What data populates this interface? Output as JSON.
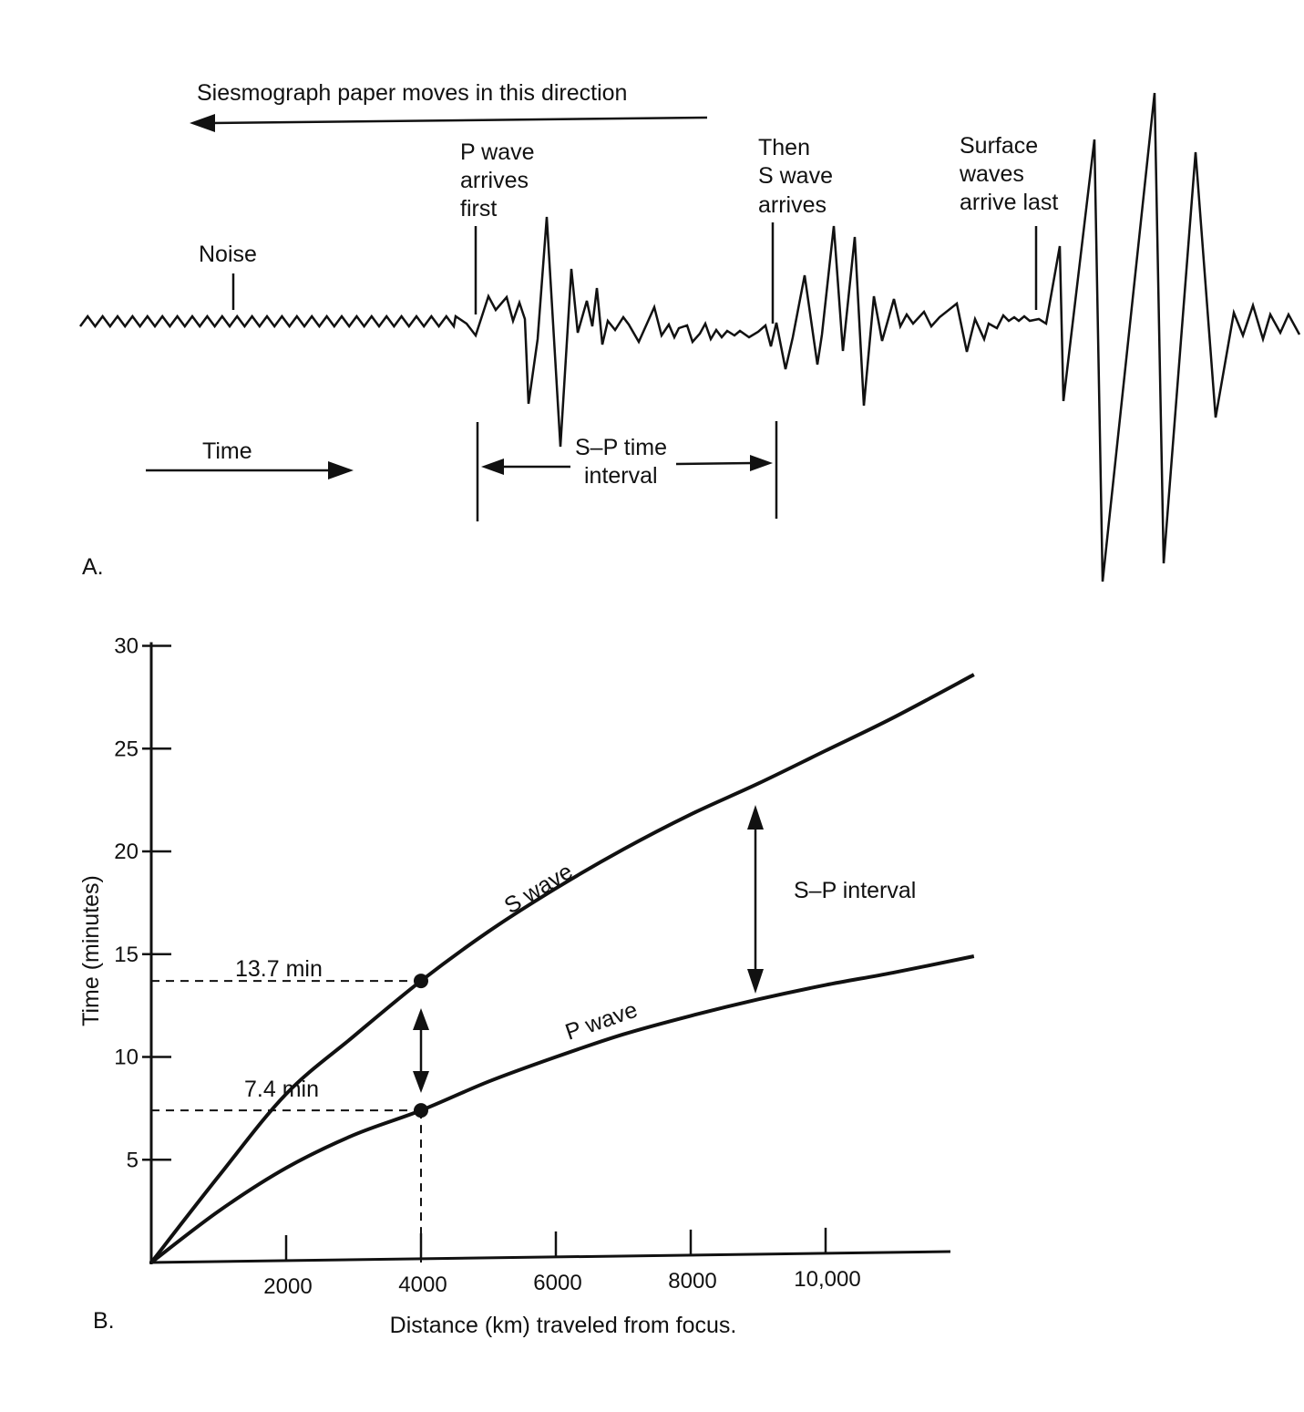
{
  "panel_a": {
    "panel_label": "A.",
    "paper_direction_label": "Siesmograph paper moves in this direction",
    "noise_label": "Noise",
    "p_wave_label": [
      "P wave",
      "arrives",
      "first"
    ],
    "s_wave_label": [
      "Then",
      "S wave",
      "arrives"
    ],
    "surface_label": [
      "Surface",
      "waves",
      "arrive last"
    ],
    "time_label": "Time",
    "sp_interval_label": [
      "S–P time",
      "interval"
    ]
  },
  "panel_b": {
    "panel_label": "B.",
    "s_marker_label": "13.7 min",
    "p_marker_label": "7.4 min",
    "interval_label": "S–P interval"
  },
  "chart_data": {
    "type": "line",
    "xlabel": "Distance (km) traveled from focus.",
    "ylabel": "Time (minutes)",
    "xlim": [
      0,
      11800
    ],
    "ylim": [
      0,
      30
    ],
    "x_ticks": [
      2000,
      4000,
      6000,
      8000,
      10000
    ],
    "x_tick_labels": [
      "2000",
      "4000",
      "6000",
      "8000",
      "10,000"
    ],
    "y_ticks": [
      5,
      10,
      15,
      20,
      25,
      30
    ],
    "y_tick_labels": [
      "5",
      "10",
      "15",
      "20",
      "25",
      "30"
    ],
    "series": [
      {
        "name": "S wave",
        "x": [
          0,
          1000,
          2000,
          3000,
          4000,
          5000,
          6000,
          7000,
          8000,
          9000,
          10000,
          11000,
          12200
        ],
        "y": [
          0,
          4.2,
          8.2,
          11.0,
          13.7,
          16.1,
          18.2,
          20.1,
          21.8,
          23.3,
          24.9,
          26.5,
          28.6
        ]
      },
      {
        "name": "P wave",
        "x": [
          0,
          1000,
          2000,
          3000,
          4000,
          5000,
          6000,
          7000,
          8000,
          9000,
          10000,
          11000,
          12200
        ],
        "y": [
          0,
          2.5,
          4.6,
          6.2,
          7.4,
          8.8,
          10.0,
          11.1,
          12.0,
          12.8,
          13.5,
          14.1,
          14.9
        ]
      }
    ],
    "markers": [
      {
        "x": 4000,
        "y": 13.7
      },
      {
        "x": 4000,
        "y": 7.4
      }
    ]
  }
}
